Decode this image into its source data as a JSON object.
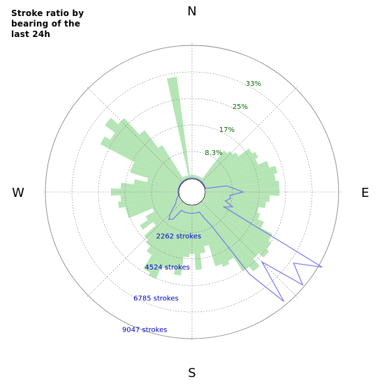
{
  "title": "Stroke ratio by bearing of the last 24h",
  "colors": {
    "ratio_fill": "#a8e0a8",
    "strokes_line": "#7777ee",
    "grid": "#888888",
    "percent_label": "#0a6a0a",
    "stroke_label": "#0000cc"
  },
  "chart_data": {
    "type": "polar-bar",
    "title": "Stroke ratio by bearing of the last 24h",
    "compass_labels": [
      "N",
      "E",
      "S",
      "W"
    ],
    "sector_width_deg": 5,
    "ratio_rings": [
      {
        "value": 8.3,
        "label": "8.3%"
      },
      {
        "value": 16.6,
        "label": "17%"
      },
      {
        "value": 24.9,
        "label": "25%"
      },
      {
        "value": 33.2,
        "label": "33%"
      }
    ],
    "stroke_rings": [
      {
        "value": 2262,
        "label": "2262 strokes"
      },
      {
        "value": 4524,
        "label": "4524 strokes"
      },
      {
        "value": 6785,
        "label": "6785 strokes"
      },
      {
        "value": 9047,
        "label": "9047 strokes"
      }
    ],
    "outer_ring_max": 41.5,
    "series": [
      {
        "kind": "ratio_percent",
        "bearing_deg": [
          0,
          5,
          10,
          15,
          20,
          25,
          30,
          35,
          40,
          45,
          50,
          55,
          60,
          65,
          70,
          75,
          80,
          85,
          90,
          95,
          100,
          105,
          110,
          115,
          120,
          125,
          130,
          135,
          140,
          145,
          150,
          155,
          160,
          165,
          170,
          175,
          180,
          185,
          190,
          195,
          200,
          205,
          210,
          215,
          220,
          225,
          230,
          235,
          240,
          245,
          250,
          255,
          260,
          265,
          270,
          275,
          280,
          285,
          290,
          295,
          300,
          305,
          310,
          315,
          320,
          325,
          330,
          335,
          340,
          345,
          350,
          355
        ],
        "values": [
          1,
          1,
          1,
          1,
          1,
          1,
          1,
          1,
          12,
          13,
          14,
          18,
          19,
          18,
          21,
          23,
          22,
          23,
          23,
          20,
          19,
          17,
          18,
          20,
          24,
          25,
          26,
          24,
          27,
          25,
          20,
          21,
          20,
          13,
          15,
          20,
          15,
          16,
          22,
          20,
          21,
          25,
          24,
          19,
          17,
          16,
          11,
          15,
          12,
          9,
          17,
          17,
          19,
          18,
          21,
          18,
          14,
          10,
          16,
          16,
          28,
          26,
          30,
          27,
          20,
          13,
          1,
          1,
          1,
          1,
          32,
          1
        ]
      },
      {
        "kind": "stroke_count",
        "bearing_deg": [
          0,
          5,
          10,
          15,
          20,
          25,
          30,
          35,
          40,
          45,
          50,
          55,
          60,
          65,
          70,
          75,
          80,
          85,
          90,
          95,
          100,
          105,
          110,
          115,
          120,
          125,
          130,
          135,
          140,
          145,
          150,
          155,
          160,
          165,
          170,
          175,
          180,
          185,
          190,
          195,
          200,
          205,
          210,
          215,
          220,
          225,
          230,
          235,
          240,
          245,
          250,
          255,
          260,
          265,
          270,
          275,
          280,
          285,
          290,
          295,
          300,
          305,
          310,
          315,
          320,
          325,
          330,
          335,
          340,
          345,
          350,
          355
        ],
        "values": [
          0,
          0,
          0,
          0,
          0,
          0,
          0,
          0,
          0,
          0,
          0,
          0,
          0,
          0,
          0,
          0,
          1450,
          1900,
          2550,
          1650,
          1700,
          1400,
          2000,
          1450,
          9300,
          7500,
          8900,
          5800,
          8800,
          5900,
          1700,
          1000,
          500,
          500,
          500,
          500,
          500,
          500,
          500,
          500,
          500,
          500,
          500,
          1300,
          1500,
          1150,
          700,
          400,
          300,
          200,
          100,
          0,
          0,
          0,
          0,
          0,
          0,
          0,
          0,
          0,
          0,
          0,
          0,
          0,
          0,
          0,
          0,
          0,
          0,
          0,
          0,
          0
        ]
      }
    ]
  }
}
